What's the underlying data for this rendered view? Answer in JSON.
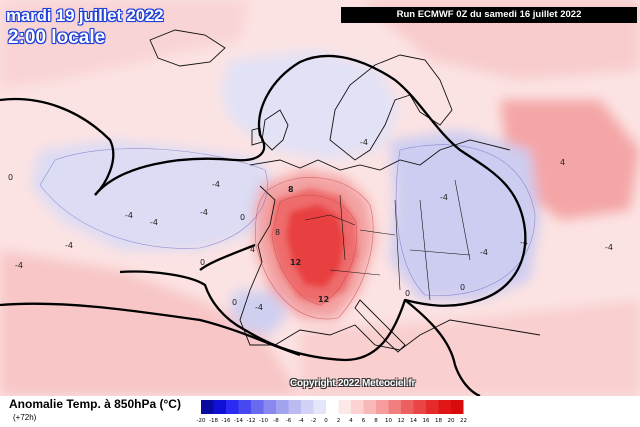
{
  "header": {
    "date_label": "mardi 19 juillet 2022",
    "time_label": "2:00 locale",
    "run_label": "Run ECMWF 0Z du samedi 16 juillet 2022"
  },
  "map": {
    "copyright": "Copyright 2022 Meteociel.fr",
    "contour_labels": [
      "-4",
      "-4",
      "-4",
      "-4",
      "-4",
      "-4",
      "-4",
      "-4",
      "-4",
      "-4",
      "-4",
      "-4",
      "0",
      "0",
      "0",
      "0",
      "0",
      "0",
      "8",
      "12",
      "12",
      "4",
      "4",
      "8"
    ]
  },
  "legend": {
    "title": "Anomalie Temp. à 850hPa (°C)",
    "subtitle": "(+72h)",
    "ticks": [
      "-20",
      "-18",
      "-16",
      "-14",
      "-12",
      "-10",
      "-8",
      "-6",
      "-4",
      "-2",
      "0",
      "2",
      "4",
      "6",
      "8",
      "10",
      "12",
      "14",
      "16",
      "18",
      "20",
      "22"
    ],
    "colors": [
      "#0a0aa0",
      "#0f10d6",
      "#2a2af2",
      "#4848f0",
      "#6a6aee",
      "#8888ee",
      "#a2a2ee",
      "#bbbbf2",
      "#d2d2f6",
      "#e6e6fa",
      "#ffffff",
      "#fde8e8",
      "#fcd2d2",
      "#f9b9b9",
      "#f69d9d",
      "#f27f7f",
      "#ee6060",
      "#ea4545",
      "#e52a2a",
      "#e01616",
      "#d80a0a"
    ]
  }
}
